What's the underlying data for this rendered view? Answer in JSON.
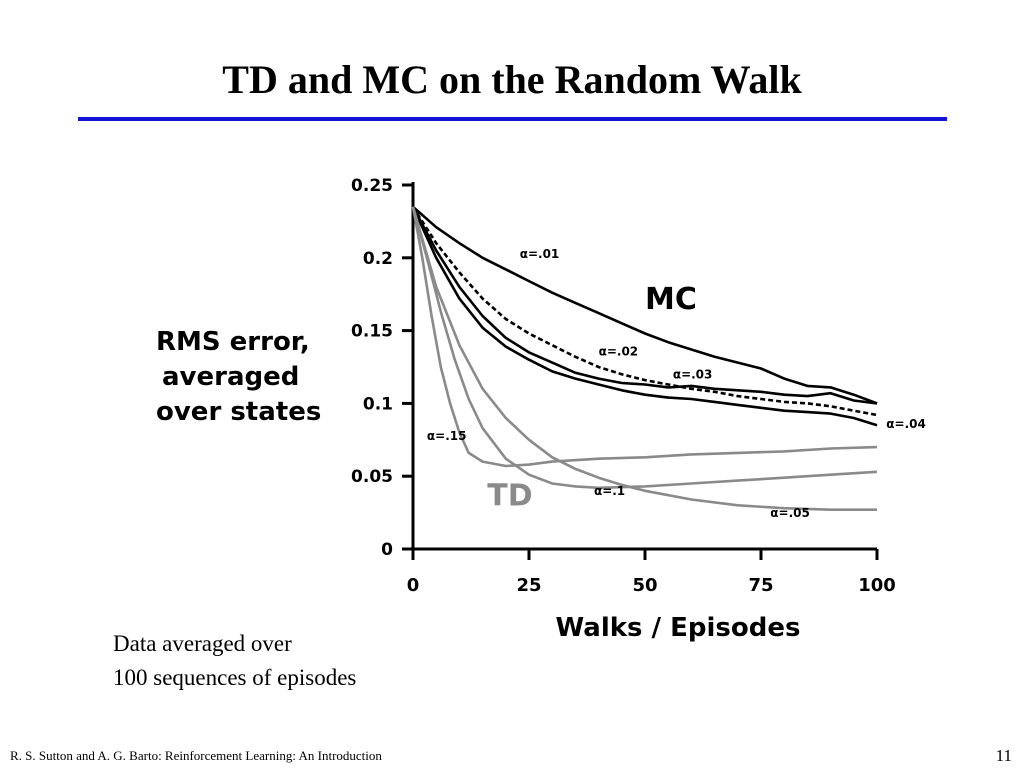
{
  "slide": {
    "title": "TD and MC on the Random Walk",
    "note_lines": [
      "Data averaged over",
      "100 sequences of episodes"
    ],
    "footer": "R. S. Sutton and A. G. Barto: Reinforcement Learning: An Introduction",
    "page_number": "11",
    "title_rule_color": "#1414d8"
  },
  "chart_data": {
    "type": "line",
    "ylabel_lines": [
      "RMS error,",
      "averaged",
      "over states"
    ],
    "xlabel": "Walks / Episodes",
    "xlim": [
      0,
      100
    ],
    "ylim": [
      0,
      0.25
    ],
    "x_ticks": [
      0,
      25,
      50,
      75,
      100
    ],
    "x_tick_labels": [
      "0",
      "25",
      "50",
      "75",
      "100"
    ],
    "y_ticks": [
      0,
      0.05,
      0.1,
      0.15,
      0.2,
      0.25
    ],
    "y_tick_labels": [
      "0",
      "0.05",
      "0.1",
      "0.15",
      "0.2",
      "0.25"
    ],
    "grid": false,
    "group_labels": [
      {
        "text": "MC",
        "x": 50,
        "y": 0.165,
        "color": "#000000"
      },
      {
        "text": "TD",
        "x": 16,
        "y": 0.03,
        "color": "#8a8a8a"
      }
    ],
    "series": [
      {
        "name": "α=.01",
        "method": "MC",
        "color": "#000000",
        "dash": "",
        "x": [
          0,
          5,
          10,
          15,
          20,
          25,
          30,
          35,
          40,
          45,
          50,
          55,
          60,
          65,
          70,
          75,
          80,
          85,
          90,
          95,
          100
        ],
        "y": [
          0.235,
          0.221,
          0.21,
          0.2,
          0.192,
          0.184,
          0.176,
          0.169,
          0.162,
          0.155,
          0.148,
          0.142,
          0.137,
          0.132,
          0.128,
          0.124,
          0.117,
          0.112,
          0.111,
          0.106,
          0.1
        ],
        "label_pos": [
          23,
          0.2
        ]
      },
      {
        "name": "α=.02",
        "method": "MC",
        "color": "#000000",
        "dash": "5,3",
        "x": [
          0,
          5,
          10,
          15,
          20,
          25,
          30,
          35,
          40,
          45,
          50,
          55,
          60,
          65,
          70,
          75,
          80,
          85,
          90,
          95,
          100
        ],
        "y": [
          0.235,
          0.21,
          0.19,
          0.172,
          0.158,
          0.148,
          0.14,
          0.132,
          0.125,
          0.12,
          0.116,
          0.113,
          0.11,
          0.108,
          0.105,
          0.103,
          0.101,
          0.1,
          0.098,
          0.095,
          0.092
        ],
        "label_pos": [
          40,
          0.133
        ]
      },
      {
        "name": "α=.03",
        "method": "MC",
        "color": "#000000",
        "dash": "",
        "x": [
          0,
          5,
          10,
          15,
          20,
          25,
          30,
          35,
          40,
          45,
          50,
          55,
          60,
          65,
          70,
          75,
          80,
          85,
          90,
          95,
          100
        ],
        "y": [
          0.235,
          0.205,
          0.18,
          0.16,
          0.145,
          0.135,
          0.128,
          0.121,
          0.117,
          0.114,
          0.113,
          0.111,
          0.112,
          0.11,
          0.109,
          0.108,
          0.106,
          0.105,
          0.107,
          0.102,
          0.1
        ],
        "label_pos": [
          56,
          0.117
        ]
      },
      {
        "name": "α=.04",
        "method": "MC",
        "color": "#000000",
        "dash": "",
        "x": [
          0,
          5,
          10,
          15,
          20,
          25,
          30,
          35,
          40,
          45,
          50,
          55,
          60,
          65,
          70,
          75,
          80,
          85,
          90,
          95,
          100
        ],
        "y": [
          0.235,
          0.2,
          0.172,
          0.152,
          0.139,
          0.13,
          0.122,
          0.117,
          0.113,
          0.109,
          0.106,
          0.104,
          0.103,
          0.101,
          0.099,
          0.097,
          0.095,
          0.094,
          0.093,
          0.09,
          0.085
        ],
        "label_pos": [
          102,
          0.083
        ]
      },
      {
        "name": "α=.15",
        "method": "TD",
        "color": "#8a8a8a",
        "dash": "",
        "x": [
          0,
          2,
          4,
          6,
          8,
          10,
          12,
          15,
          20,
          25,
          30,
          40,
          50,
          60,
          70,
          80,
          90,
          100
        ],
        "y": [
          0.235,
          0.2,
          0.16,
          0.125,
          0.1,
          0.08,
          0.066,
          0.06,
          0.057,
          0.058,
          0.06,
          0.062,
          0.063,
          0.065,
          0.066,
          0.067,
          0.069,
          0.07
        ],
        "label_pos": [
          3,
          0.075
        ]
      },
      {
        "name": "α=.1",
        "method": "TD",
        "color": "#8a8a8a",
        "dash": "",
        "x": [
          0,
          3,
          6,
          9,
          12,
          15,
          20,
          25,
          30,
          35,
          40,
          50,
          60,
          70,
          80,
          90,
          100
        ],
        "y": [
          0.235,
          0.2,
          0.163,
          0.13,
          0.103,
          0.083,
          0.062,
          0.051,
          0.045,
          0.043,
          0.042,
          0.043,
          0.045,
          0.047,
          0.049,
          0.051,
          0.053
        ],
        "label_pos": [
          39,
          0.037
        ]
      },
      {
        "name": "α=.05",
        "method": "TD",
        "color": "#8a8a8a",
        "dash": "",
        "x": [
          0,
          5,
          10,
          15,
          20,
          25,
          30,
          35,
          40,
          45,
          50,
          60,
          70,
          80,
          90,
          100
        ],
        "y": [
          0.235,
          0.18,
          0.14,
          0.11,
          0.09,
          0.075,
          0.063,
          0.055,
          0.049,
          0.044,
          0.04,
          0.034,
          0.03,
          0.028,
          0.027,
          0.027
        ],
        "label_pos": [
          77,
          0.022
        ]
      }
    ]
  }
}
